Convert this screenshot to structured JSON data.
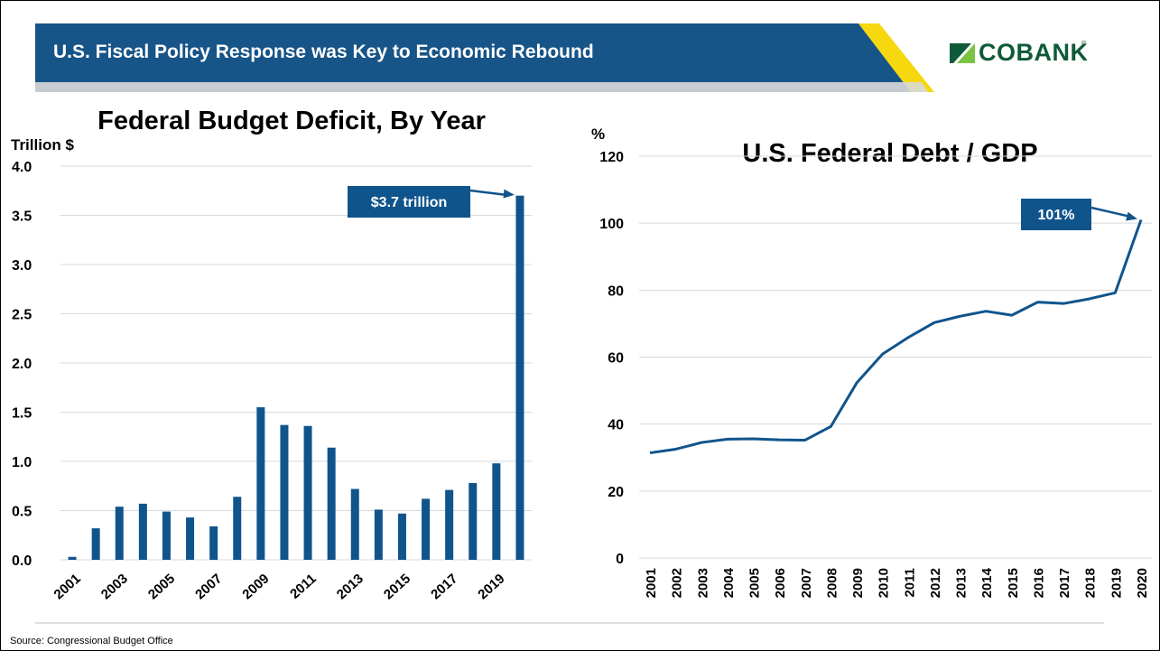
{
  "header": {
    "title": "U.S. Fiscal Policy Response was Key to Economic Rebound",
    "logo_text": "COBANK",
    "logo_tm": "®"
  },
  "colors": {
    "header_bar": "#175487",
    "accent_yellow": "#f5d80d",
    "series": "#10548c",
    "grid": "#d9d9d9",
    "logo_green": "#0f5a38",
    "logo_light_green": "#7cc243"
  },
  "source": "Source: Congressional Budget Office",
  "chart_data": [
    {
      "type": "bar",
      "title": "Federal Budget Deficit, By Year",
      "ylabel": "Trillion $",
      "ylim": [
        0,
        4
      ],
      "yticks": [
        "0.0",
        "0.5",
        "1.0",
        "1.5",
        "2.0",
        "2.5",
        "3.0",
        "3.5",
        "4.0"
      ],
      "categories": [
        "2001",
        "2002",
        "2003",
        "2004",
        "2005",
        "2006",
        "2007",
        "2008",
        "2009",
        "2010",
        "2011",
        "2012",
        "2013",
        "2014",
        "2015",
        "2016",
        "2017",
        "2018",
        "2019",
        "2020"
      ],
      "xtick_labels": [
        "2001",
        "2003",
        "2005",
        "2007",
        "2009",
        "2011",
        "2013",
        "2015",
        "2017",
        "2019"
      ],
      "values": [
        0.03,
        0.32,
        0.54,
        0.57,
        0.49,
        0.43,
        0.34,
        0.64,
        1.55,
        1.37,
        1.36,
        1.14,
        0.72,
        0.51,
        0.47,
        0.62,
        0.71,
        0.78,
        0.98,
        3.7
      ],
      "grid": true,
      "annotation": {
        "text": "$3.7 trillion",
        "category": "2020",
        "value": 3.7
      }
    },
    {
      "type": "line",
      "title": "U.S. Federal Debt / GDP",
      "ylabel": "%",
      "ylim": [
        0,
        120
      ],
      "yticks": [
        "0",
        "20",
        "40",
        "60",
        "80",
        "100",
        "120"
      ],
      "x": [
        "2001",
        "2002",
        "2003",
        "2004",
        "2005",
        "2006",
        "2007",
        "2008",
        "2009",
        "2010",
        "2011",
        "2012",
        "2013",
        "2014",
        "2015",
        "2016",
        "2017",
        "2018",
        "2019",
        "2020"
      ],
      "values": [
        31.4,
        32.5,
        34.5,
        35.5,
        35.6,
        35.3,
        35.2,
        39.3,
        52.3,
        60.9,
        65.9,
        70.3,
        72.2,
        73.7,
        72.5,
        76.4,
        76.0,
        77.4,
        79.2,
        101
      ],
      "grid": true,
      "annotation": {
        "text": "101%",
        "index": 19,
        "value": 101
      }
    }
  ]
}
